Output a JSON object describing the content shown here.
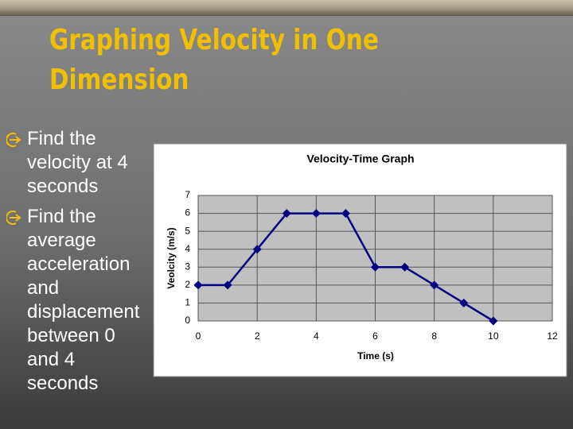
{
  "slide": {
    "title": "Graphing Velocity in One Dimension",
    "bullets": [
      "Find the velocity at 4 seconds",
      "Find the average acceleration and displacement between 0 and 4 seconds"
    ]
  },
  "chart_data": {
    "type": "line",
    "title": "Velocity-Time Graph",
    "x_label": "Time (s)",
    "y_label": "Veolcity (m/s)",
    "x": [
      0,
      1,
      2,
      3,
      4,
      5,
      6,
      7,
      8,
      9,
      10
    ],
    "series": [
      {
        "name": "Velocity",
        "color": "#000080",
        "values": [
          2,
          2,
          4,
          6,
          6,
          6,
          3,
          3,
          2,
          1,
          0
        ]
      }
    ],
    "xlim": [
      0,
      12
    ],
    "xticks": [
      0,
      2,
      4,
      6,
      8,
      10,
      12
    ],
    "ylim": [
      0,
      7
    ],
    "yticks": [
      0,
      1,
      2,
      3,
      4,
      5,
      6,
      7
    ],
    "grid": true,
    "legend": false
  }
}
